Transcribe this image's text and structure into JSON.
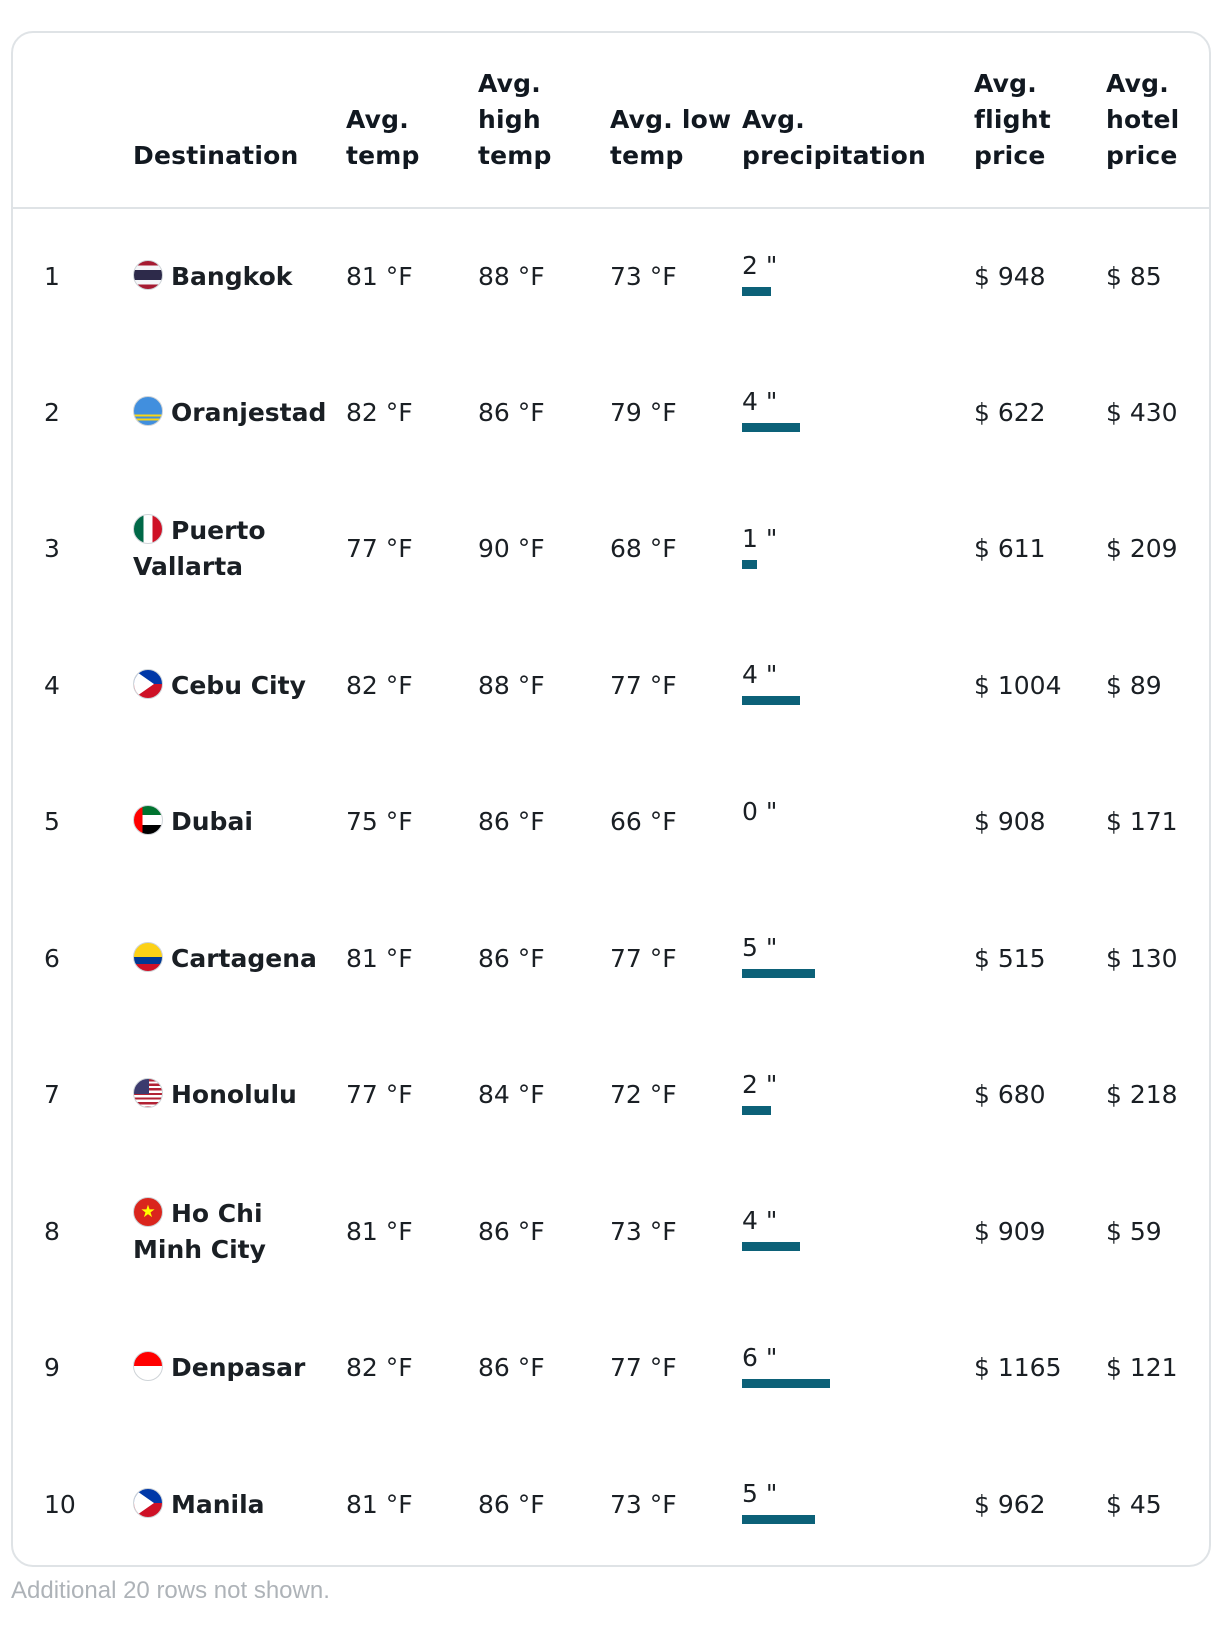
{
  "headers": {
    "rank": "",
    "destination": "Destination",
    "avg_temp": "Avg. temp",
    "avg_high": "Avg. high temp",
    "avg_low": "Avg. low temp",
    "avg_precip": "Avg. precipitation",
    "flight_price": "Avg. flight price",
    "hotel_price": "Avg. hotel price"
  },
  "colors": {
    "precip_bar": "#0c6178",
    "border": "#dfe3e6",
    "footnote": "#aeb3b8"
  },
  "rows": [
    {
      "rank": "1",
      "flag": "thailand-flag",
      "destination": "Bangkok",
      "avg_temp": "81 °F",
      "high": "88 °F",
      "low": "73 °F",
      "precip": "2 \"",
      "precip_value": 2,
      "flight": "$ 948",
      "hotel": "$ 85"
    },
    {
      "rank": "2",
      "flag": "aruba-flag",
      "destination": "Oranjestad",
      "avg_temp": "82 °F",
      "high": "86 °F",
      "low": "79 °F",
      "precip": "4 \"",
      "precip_value": 4,
      "flight": "$ 622",
      "hotel": "$ 430"
    },
    {
      "rank": "3",
      "flag": "mexico-flag",
      "destination": "Puerto Vallarta",
      "avg_temp": "77 °F",
      "high": "90 °F",
      "low": "68 °F",
      "precip": "1 \"",
      "precip_value": 1,
      "flight": "$ 611",
      "hotel": "$ 209"
    },
    {
      "rank": "4",
      "flag": "philippines-flag",
      "destination": "Cebu City",
      "avg_temp": "82 °F",
      "high": "88 °F",
      "low": "77 °F",
      "precip": "4 \"",
      "precip_value": 4,
      "flight": "$ 1004",
      "hotel": "$ 89"
    },
    {
      "rank": "5",
      "flag": "uae-flag",
      "destination": "Dubai",
      "avg_temp": "75 °F",
      "high": "86 °F",
      "low": "66 °F",
      "precip": "0 \"",
      "precip_value": 0,
      "flight": "$ 908",
      "hotel": "$ 171"
    },
    {
      "rank": "6",
      "flag": "colombia-flag",
      "destination": "Cartagena",
      "avg_temp": "81 °F",
      "high": "86 °F",
      "low": "77 °F",
      "precip": "5 \"",
      "precip_value": 5,
      "flight": "$ 515",
      "hotel": "$ 130"
    },
    {
      "rank": "7",
      "flag": "usa-flag",
      "destination": "Honolulu",
      "avg_temp": "77 °F",
      "high": "84 °F",
      "low": "72 °F",
      "precip": "2 \"",
      "precip_value": 2,
      "flight": "$ 680",
      "hotel": "$ 218"
    },
    {
      "rank": "8",
      "flag": "vietnam-flag",
      "destination": "Ho Chi Minh City",
      "avg_temp": "81 °F",
      "high": "86 °F",
      "low": "73 °F",
      "precip": "4 \"",
      "precip_value": 4,
      "flight": "$ 909",
      "hotel": "$ 59"
    },
    {
      "rank": "9",
      "flag": "indonesia-flag",
      "destination": "Denpasar",
      "avg_temp": "82 °F",
      "high": "86 °F",
      "low": "77 °F",
      "precip": "6 \"",
      "precip_value": 6,
      "flight": "$ 1165",
      "hotel": "$ 121"
    },
    {
      "rank": "10",
      "flag": "philippines-flag",
      "destination": "Manila",
      "avg_temp": "81 °F",
      "high": "86 °F",
      "low": "73 °F",
      "precip": "5 \"",
      "precip_value": 5,
      "flight": "$ 962",
      "hotel": "$ 45"
    }
  ],
  "footnote": "Additional 20 rows not shown."
}
